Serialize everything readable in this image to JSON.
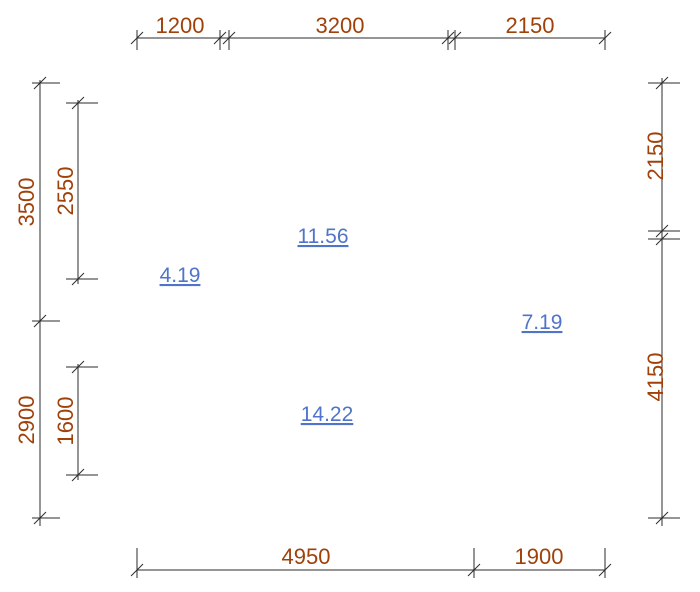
{
  "colors": {
    "dimension_text": "#a0410a",
    "area_text": "#4f74c9",
    "lines": "#2b2b2b"
  },
  "dimensions": {
    "top": [
      "1200",
      "3200",
      "2150"
    ],
    "bottom": [
      "4950",
      "1900"
    ],
    "left_outer": [
      "3500",
      "2900"
    ],
    "left_inner": [
      "2550",
      "1600"
    ],
    "right": [
      "2150",
      "4150"
    ]
  },
  "areas": [
    "4.19",
    "11.56",
    "14.22",
    "7.19"
  ]
}
